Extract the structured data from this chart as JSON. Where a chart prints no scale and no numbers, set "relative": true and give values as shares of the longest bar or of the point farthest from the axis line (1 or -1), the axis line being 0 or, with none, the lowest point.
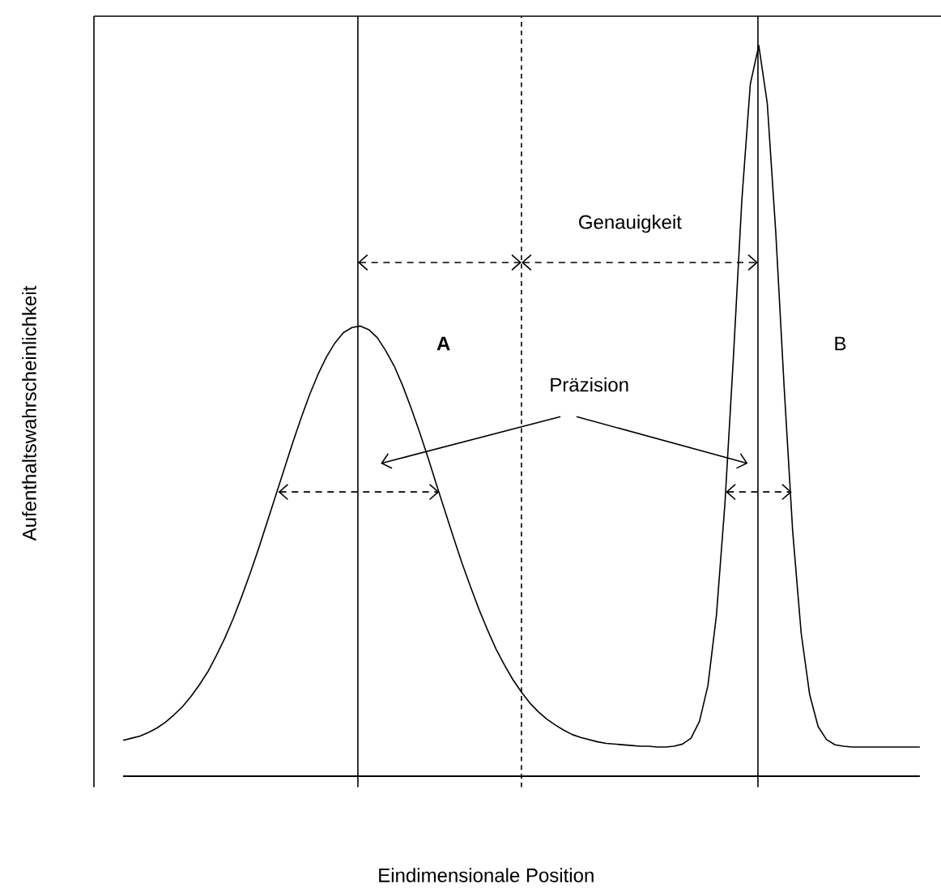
{
  "chart_data": {
    "type": "line",
    "relative": true,
    "xlabel": "Eindimensionale Position",
    "ylabel": "Aufenthaltswahrscheinlichkeit",
    "categories": [
      null,
      null,
      null,
      null,
      null,
      null,
      null,
      null,
      null,
      null,
      null,
      null,
      null,
      null,
      null,
      null,
      null,
      null,
      null,
      null,
      null,
      null,
      null,
      null,
      null,
      null,
      null,
      null,
      null,
      null,
      null,
      null,
      null,
      null,
      null,
      null,
      null,
      null,
      null,
      null,
      null,
      null,
      null,
      null,
      null,
      null,
      null,
      null,
      null,
      null,
      null,
      null,
      null,
      null,
      null,
      null,
      null,
      null,
      null,
      null,
      null,
      null,
      null,
      null,
      null,
      null,
      null,
      null,
      null,
      null,
      null,
      null,
      null,
      null,
      null,
      null,
      null,
      null,
      null,
      null,
      null,
      null,
      null,
      null,
      null,
      null,
      null,
      null,
      null,
      null,
      null,
      null,
      null,
      null,
      null
    ],
    "series": [
      {
        "color": "#000000",
        "values": [
          0.049,
          0.052,
          0.055,
          0.06,
          0.066,
          0.074,
          0.084,
          0.095,
          0.109,
          0.125,
          0.143,
          0.165,
          0.189,
          0.216,
          0.246,
          0.278,
          0.312,
          0.348,
          0.384,
          0.42,
          0.456,
          0.49,
          0.522,
          0.55,
          0.574,
          0.593,
          0.607,
          0.614,
          0.616,
          0.611,
          0.6,
          0.582,
          0.561,
          0.534,
          0.503,
          0.47,
          0.435,
          0.398,
          0.362,
          0.326,
          0.291,
          0.259,
          0.228,
          0.2,
          0.174,
          0.152,
          0.132,
          0.115,
          0.1,
          0.088,
          0.078,
          0.07,
          0.063,
          0.057,
          0.053,
          0.05,
          0.047,
          0.045,
          0.044,
          0.043,
          0.042,
          0.041,
          0.041,
          0.04,
          0.04,
          0.041,
          0.044,
          0.052,
          0.075,
          0.124,
          0.22,
          0.372,
          0.572,
          0.788,
          0.947,
          1.0,
          0.921,
          0.745,
          0.531,
          0.335,
          0.196,
          0.112,
          0.068,
          0.05,
          0.043,
          0.041,
          0.04,
          0.04,
          0.04,
          0.04,
          0.04,
          0.04,
          0.04,
          0.04,
          0.04
        ]
      }
    ],
    "annotations": [
      "Genauigkeit",
      "A",
      "B",
      "Präzision"
    ]
  }
}
